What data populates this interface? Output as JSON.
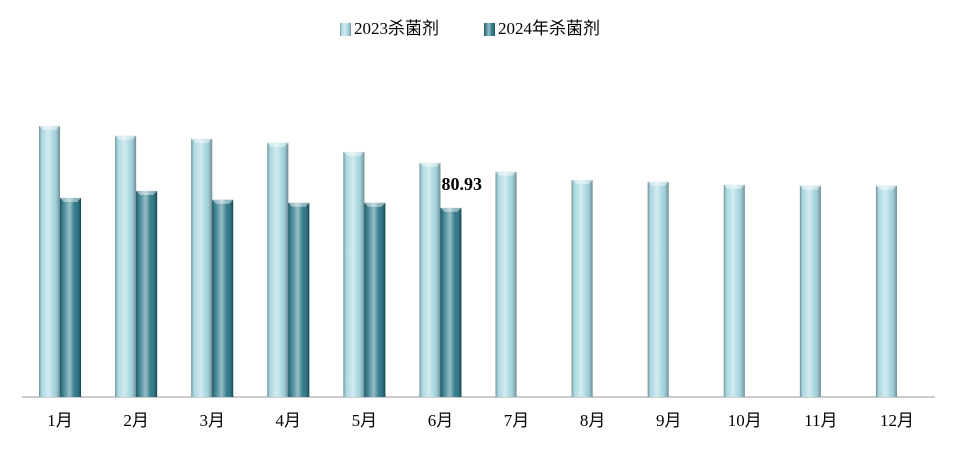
{
  "chart_data": {
    "type": "bar",
    "categories": [
      "1月",
      "2月",
      "3月",
      "4月",
      "5月",
      "6月",
      "7月",
      "8月",
      "9月",
      "10月",
      "11月",
      "12月"
    ],
    "series": [
      {
        "name": "2023杀菌剂",
        "color": "#9fd3dd",
        "values": [
          116.0,
          111.8,
          110.5,
          108.8,
          104.9,
          100.2,
          96.4,
          92.9,
          92.1,
          90.8,
          90.4,
          90.4
        ]
      },
      {
        "name": "2024年杀菌剂",
        "color": "#1c6e80",
        "values": [
          85.2,
          88.2,
          84.4,
          83.1,
          83.1,
          80.93,
          null,
          null,
          null,
          null,
          null,
          null
        ],
        "data_labels": "last"
      }
    ],
    "legend": "top"
  }
}
